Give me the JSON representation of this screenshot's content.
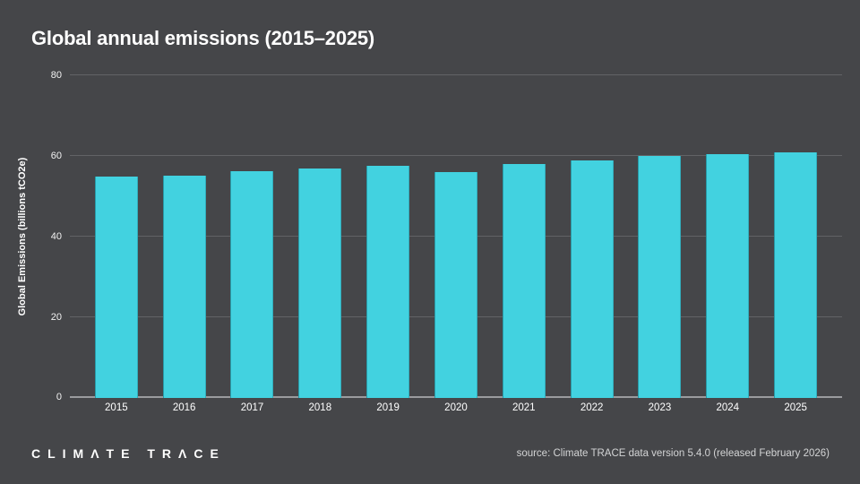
{
  "title": "Global annual emissions (2015–2025)",
  "y_axis_title": "Global Emissions (billions tCO2e)",
  "footer": {
    "logo": "CLIMΛTE TRΛCE",
    "source": "source: Climate TRACE data version 5.4.0 (released February 2026)"
  },
  "colors": {
    "background": "#454649",
    "bar": "#42d2e0",
    "gridline": "rgba(255,255,255,0.16)",
    "axis_baseline": "#9a9b9e",
    "title_text": "#ffffff",
    "tick_text": "#f2f2f2",
    "source_text": "#d3d4d5"
  },
  "chart_data": {
    "type": "bar",
    "title": "Global annual emissions (2015–2025)",
    "categories": [
      "2015",
      "2016",
      "2017",
      "2018",
      "2019",
      "2020",
      "2021",
      "2022",
      "2023",
      "2024",
      "2025"
    ],
    "values": [
      54.8,
      55.1,
      56.2,
      56.9,
      57.6,
      56.0,
      58.1,
      58.9,
      60.0,
      60.4,
      60.8
    ],
    "xlabel": "",
    "ylabel": "Global Emissions (billions tCO2e)",
    "ylim": [
      0,
      80
    ],
    "yticks": [
      0,
      20,
      40,
      60,
      80
    ],
    "grid": true,
    "legend": "none",
    "bar_color": "#42d2e0"
  }
}
